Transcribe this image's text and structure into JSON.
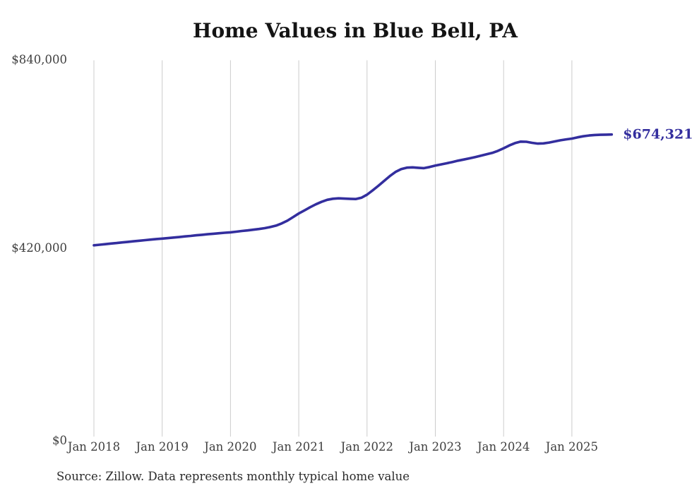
{
  "colors": {
    "background": "#ffffff",
    "line": "#332e9e",
    "grid": "#cccccc",
    "title": "#141414",
    "tick": "#3f3f3f",
    "source": "#2b2b2b"
  },
  "chart_data": {
    "type": "line",
    "title": "Home Values in Blue Bell, PA",
    "source": "Source: Zillow. Data represents monthly typical home value",
    "end_label": "$674,321",
    "latest_value": 674321,
    "xlabel": "",
    "ylabel": "",
    "ylim": [
      0,
      840000
    ],
    "grid": "vertical-only",
    "legend": "none",
    "line_color": "#332e9e",
    "y_ticks": [
      {
        "label": "$840,000",
        "value": 840000
      },
      {
        "label": "$420,000",
        "value": 420000
      },
      {
        "label": "$0",
        "value": 0
      }
    ],
    "x_ticks": [
      {
        "label": "Jan 2018",
        "month_index": 0
      },
      {
        "label": "Jan 2019",
        "month_index": 12
      },
      {
        "label": "Jan 2020",
        "month_index": 24
      },
      {
        "label": "Jan 2021",
        "month_index": 36
      },
      {
        "label": "Jan 2022",
        "month_index": 48
      },
      {
        "label": "Jan 2023",
        "month_index": 60
      },
      {
        "label": "Jan 2024",
        "month_index": 72
      },
      {
        "label": "Jan 2025",
        "month_index": 84
      }
    ],
    "x": [
      "2018-01",
      "2018-02",
      "2018-03",
      "2018-04",
      "2018-05",
      "2018-06",
      "2018-07",
      "2018-08",
      "2018-09",
      "2018-10",
      "2018-11",
      "2018-12",
      "2019-01",
      "2019-02",
      "2019-03",
      "2019-04",
      "2019-05",
      "2019-06",
      "2019-07",
      "2019-08",
      "2019-09",
      "2019-10",
      "2019-11",
      "2019-12",
      "2020-01",
      "2020-02",
      "2020-03",
      "2020-04",
      "2020-05",
      "2020-06",
      "2020-07",
      "2020-08",
      "2020-09",
      "2020-10",
      "2020-11",
      "2020-12",
      "2021-01",
      "2021-02",
      "2021-03",
      "2021-04",
      "2021-05",
      "2021-06",
      "2021-07",
      "2021-08",
      "2021-09",
      "2021-10",
      "2021-11",
      "2021-12",
      "2022-01",
      "2022-02",
      "2022-03",
      "2022-04",
      "2022-05",
      "2022-06",
      "2022-07",
      "2022-08",
      "2022-09",
      "2022-10",
      "2022-11",
      "2022-12",
      "2023-01",
      "2023-02",
      "2023-03",
      "2023-04",
      "2023-05",
      "2023-06",
      "2023-07",
      "2023-08",
      "2023-09",
      "2023-10",
      "2023-11",
      "2023-12",
      "2024-01",
      "2024-02",
      "2024-03",
      "2024-04",
      "2024-05",
      "2024-06",
      "2024-07",
      "2024-08",
      "2024-09",
      "2024-10",
      "2024-11",
      "2024-12",
      "2025-01",
      "2025-02",
      "2025-03",
      "2025-04",
      "2025-05",
      "2025-06",
      "2025-07",
      "2025-08"
    ],
    "series": [
      {
        "name": "Typical home value",
        "values": [
          427000,
          428300,
          429600,
          430900,
          432100,
          433400,
          434700,
          436000,
          437300,
          438500,
          439800,
          441000,
          442000,
          443100,
          444300,
          445500,
          446800,
          448000,
          449300,
          450500,
          451700,
          452800,
          453900,
          455000,
          456000,
          457400,
          458900,
          460300,
          461800,
          463300,
          465200,
          467800,
          471000,
          475800,
          481900,
          489800,
          498000,
          505000,
          512000,
          518500,
          524000,
          528500,
          531000,
          531800,
          531300,
          530700,
          530300,
          533200,
          540000,
          549800,
          559900,
          570700,
          581500,
          590800,
          597100,
          600400,
          601000,
          600100,
          599200,
          601700,
          605000,
          607600,
          610200,
          613000,
          615900,
          618500,
          621100,
          624000,
          627000,
          630100,
          633300,
          637800,
          643700,
          650000,
          655200,
          658500,
          658100,
          655800,
          654000,
          654600,
          656400,
          659000,
          661500,
          663500,
          665300,
          668000,
          670400,
          672100,
          673200,
          673700,
          674000,
          674321
        ]
      }
    ]
  }
}
